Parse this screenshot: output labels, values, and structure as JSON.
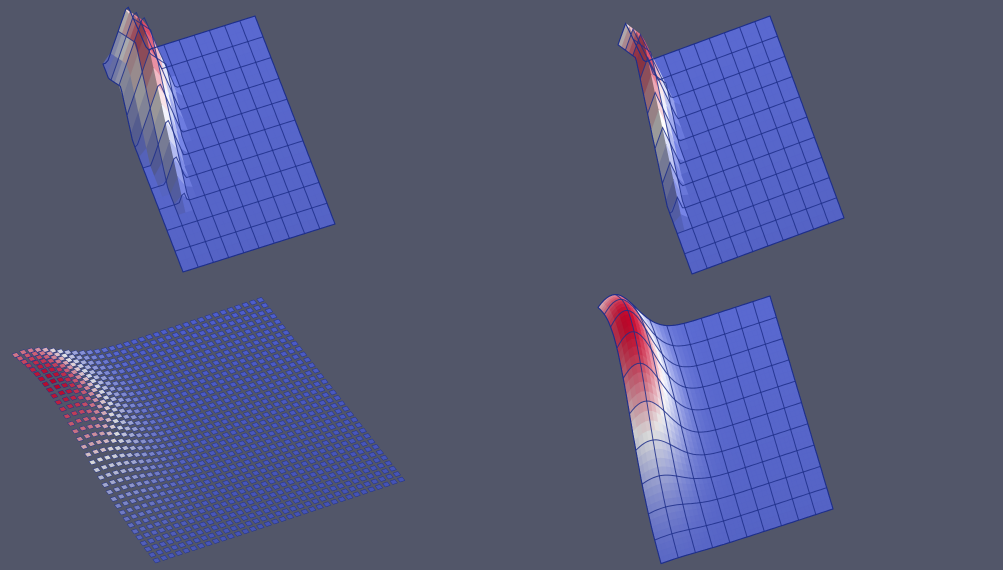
{
  "scene": {
    "background": "#525669",
    "colormap": {
      "low": "#3b4cc0",
      "mid": "#dddddd",
      "high": "#b40426"
    },
    "grid_line_color": "#1e2f8a",
    "panels": [
      {
        "id": "linear-elements",
        "grid_cells": 10,
        "style": "linear",
        "peak_height": 0.95,
        "peak_position": [
          0.16,
          0.22
        ]
      },
      {
        "id": "linear-elements-edge",
        "grid_cells": 10,
        "style": "linear",
        "peak_height": 0.9,
        "peak_position": [
          0.05,
          0.24
        ]
      },
      {
        "id": "discontinuous-cells",
        "grid_cells": 34,
        "style": "cells",
        "peak_height": 0.6,
        "peak_position": [
          0.04,
          0.22
        ]
      },
      {
        "id": "smooth-higher-order",
        "grid_cells": 10,
        "style": "smooth",
        "peak_height": 0.95,
        "peak_position": [
          0.08,
          0.25
        ]
      }
    ]
  }
}
